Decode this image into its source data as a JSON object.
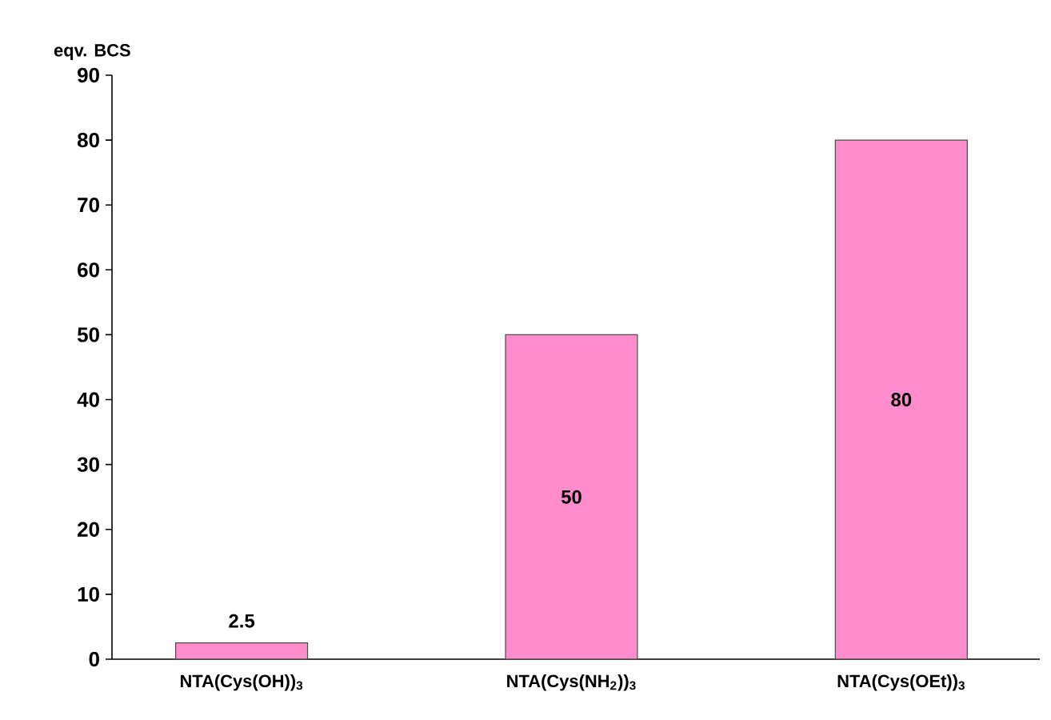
{
  "chart_data": {
    "type": "bar",
    "ylabel": "eqv. BCS",
    "categories": [
      "NTA(Cys(OH))$_{3}$",
      "NTA(Cys(NH$_{2}$))$_{3}$",
      "NTA(Cys(OEt))$_{3}$"
    ],
    "values": [
      2.5,
      50,
      80
    ],
    "color": "#ff8ccc",
    "ylim": [
      0,
      90
    ],
    "yticks": [
      0,
      10,
      20,
      30,
      40,
      50,
      60,
      70,
      80,
      90
    ],
    "data_labels": true,
    "grid": false
  }
}
